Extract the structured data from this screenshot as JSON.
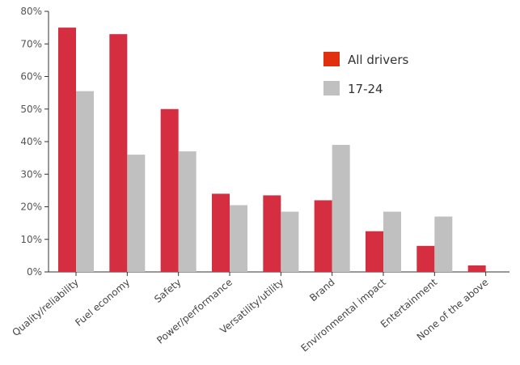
{
  "chart_data": {
    "type": "bar",
    "title": "",
    "xlabel": "",
    "ylabel": "",
    "ylim": [
      0,
      80
    ],
    "y_ticks": [
      "0%",
      "10%",
      "20%",
      "30%",
      "40%",
      "50%",
      "60%",
      "70%",
      "80%"
    ],
    "y_tick_values": [
      0,
      10,
      20,
      30,
      40,
      50,
      60,
      70,
      80
    ],
    "grid": false,
    "legend_position": "top-right",
    "categories": [
      "Quality/reliability",
      "Fuel economy",
      "Safety",
      "Power/performance",
      "Versatility/utility",
      "Brand",
      "Environmental impact",
      "Entertainment",
      "None of the above"
    ],
    "series": [
      {
        "name": "All drivers",
        "color": "#d42e40",
        "values": [
          75,
          73,
          50,
          24,
          23.5,
          22,
          12.5,
          8,
          2
        ]
      },
      {
        "name": "17-24",
        "color": "#c0c0c0",
        "values": [
          55.5,
          36,
          37,
          20.5,
          18.5,
          39,
          18.5,
          17,
          0
        ]
      }
    ]
  }
}
